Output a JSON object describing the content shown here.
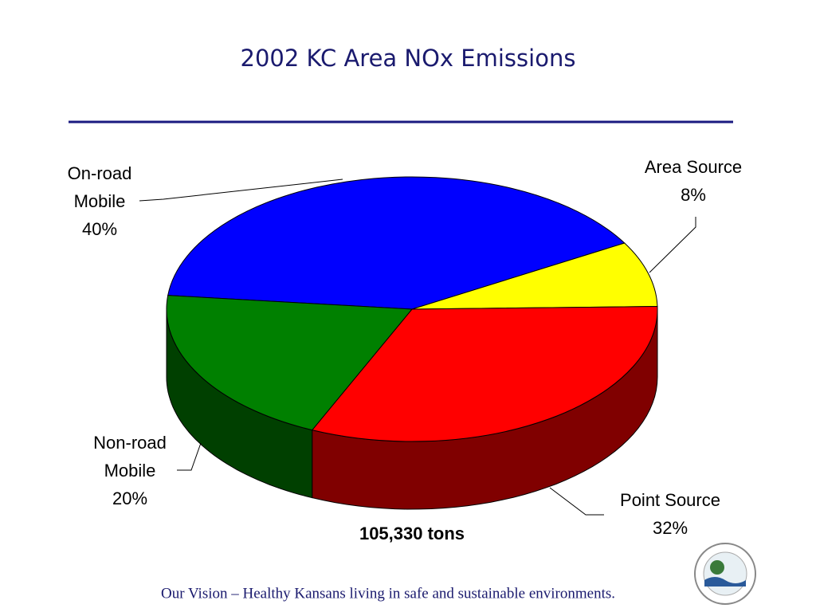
{
  "chart_data": {
    "type": "pie",
    "title": "2002 KC Area NOx Emissions",
    "categories": [
      "On-road Mobile",
      "Area Source",
      "Point Source",
      "Non-road Mobile"
    ],
    "values": [
      40,
      8,
      32,
      20
    ],
    "value_labels": [
      "40%",
      "8%",
      "32%",
      "20%"
    ],
    "colors": [
      "#0000ff",
      "#ffff00",
      "#ff0000",
      "#008000"
    ],
    "annotation": "105,330 tons"
  },
  "footer": "Our Vision – Healthy Kansans living in safe and sustainable environments."
}
